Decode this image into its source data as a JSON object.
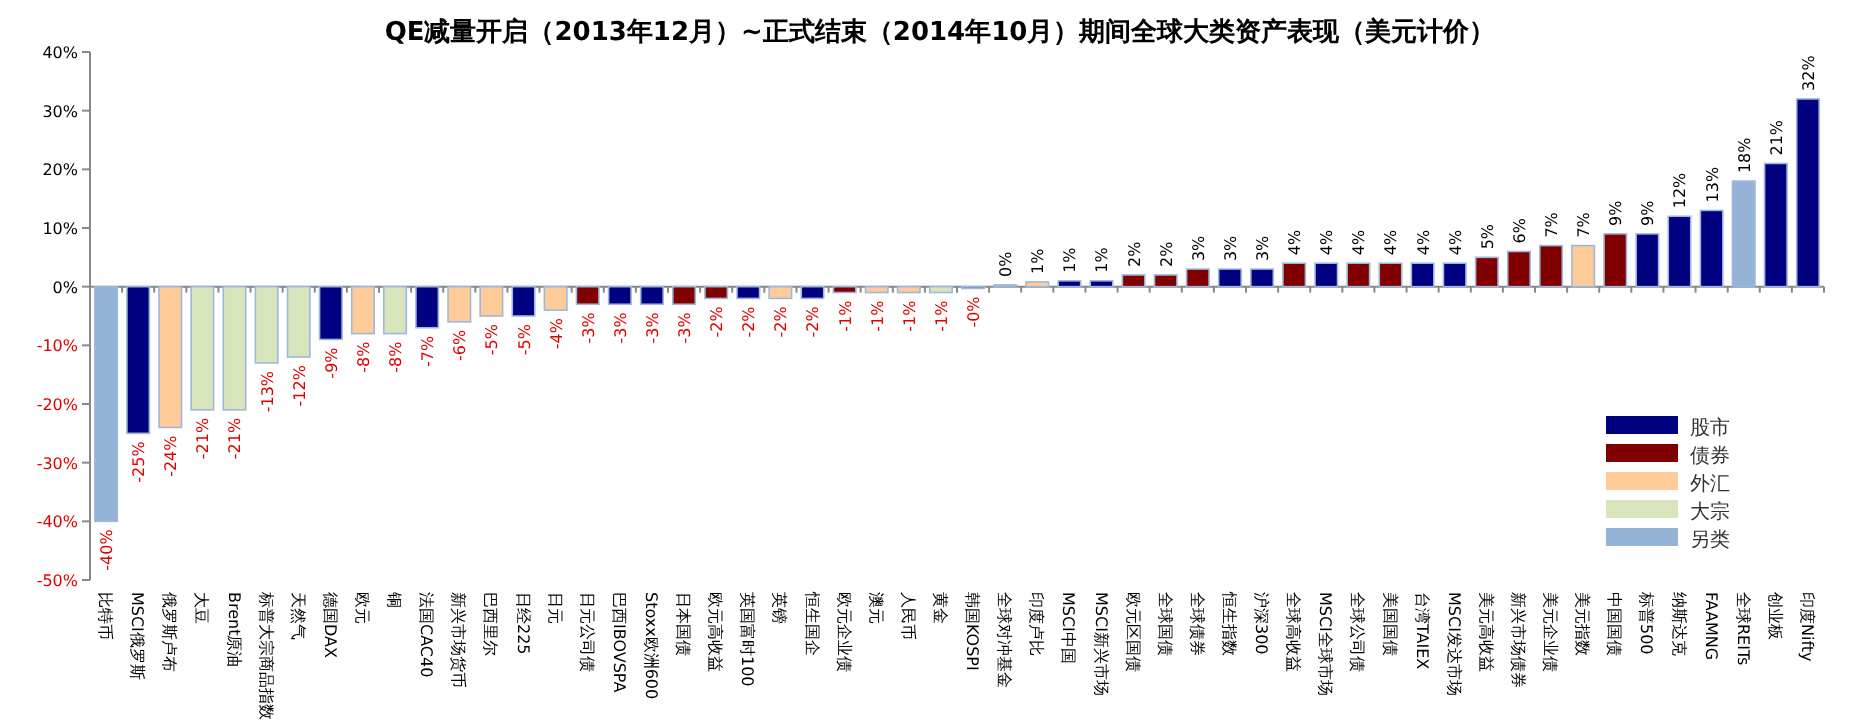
{
  "chart_data": {
    "type": "bar",
    "title": "QE减量开启（2013年12月）~正式结束（2014年10月）期间全球大类资产表现（美元计价）",
    "categories": [
      "比特币",
      "MSCI俄罗斯",
      "俄罗斯卢布",
      "大豆",
      "Brent原油",
      "标普大宗商品指数",
      "天然气",
      "德国DAX",
      "欧元",
      "铜",
      "法国CAC40",
      "新兴市场货币",
      "巴西里尔",
      "日经225",
      "日元",
      "日元公司债",
      "巴西IBOVSPA",
      "Stoxx欧洲600",
      "日本国债",
      "欧元高收益",
      "英国富时100",
      "英镑",
      "恒生国企",
      "欧元企业债",
      "澳元",
      "人民币",
      "黄金",
      "韩国KOSPI",
      "全球对冲基金",
      "印度卢比",
      "MSCI中国",
      "MSCI新兴市场",
      "欧元区国债",
      "全球国债",
      "全球债券",
      "恒生指数",
      "沪深300",
      "全球高收益",
      "MSCI全球市场",
      "全球公司债",
      "美国国债",
      "台湾TAIEX",
      "MSCI发达市场",
      "美元高收益",
      "新兴市场债券",
      "美元企业债",
      "美元指数",
      "中国国债",
      "标普500",
      "纳斯达克",
      "FAAMNG",
      "全球REITs",
      "创业板",
      "印度Nifty"
    ],
    "series": [
      {
        "name": "股市",
        "color": "#000080",
        "values": [
          null,
          -25,
          null,
          null,
          null,
          null,
          null,
          -9,
          null,
          null,
          -7,
          null,
          null,
          -5,
          null,
          null,
          -3,
          -3,
          null,
          null,
          -2,
          null,
          -2,
          null,
          null,
          null,
          null,
          -0.3,
          null,
          null,
          1,
          1,
          null,
          null,
          null,
          3,
          3,
          null,
          4,
          null,
          null,
          4,
          4,
          null,
          null,
          null,
          null,
          null,
          9,
          12,
          13,
          null,
          21,
          32
        ]
      },
      {
        "name": "债券",
        "color": "#800000",
        "values": [
          null,
          null,
          null,
          null,
          null,
          null,
          null,
          null,
          null,
          null,
          null,
          null,
          null,
          null,
          null,
          -3,
          null,
          null,
          -3,
          -2,
          null,
          null,
          null,
          -1,
          null,
          null,
          null,
          null,
          null,
          null,
          null,
          null,
          2,
          2,
          3,
          null,
          null,
          4,
          null,
          4,
          4,
          null,
          null,
          5,
          6,
          7,
          null,
          9,
          null,
          null,
          null,
          null,
          null,
          null
        ]
      },
      {
        "name": "外汇",
        "color": "#ffcc99",
        "values": [
          null,
          null,
          -24,
          null,
          null,
          null,
          null,
          null,
          -8,
          null,
          null,
          -6,
          -5,
          null,
          -4,
          null,
          null,
          null,
          null,
          null,
          null,
          -2,
          null,
          null,
          -1,
          -1,
          null,
          null,
          null,
          0.8,
          null,
          null,
          null,
          null,
          null,
          null,
          null,
          null,
          null,
          null,
          null,
          null,
          null,
          null,
          null,
          null,
          7,
          null,
          null,
          null,
          null,
          null,
          null,
          null
        ]
      },
      {
        "name": "大宗",
        "color": "#d8e4bc",
        "values": [
          null,
          null,
          null,
          -21,
          -21,
          -13,
          -12,
          null,
          null,
          -8,
          null,
          null,
          null,
          null,
          null,
          null,
          null,
          null,
          null,
          null,
          null,
          null,
          null,
          null,
          null,
          null,
          -1,
          null,
          null,
          null,
          null,
          null,
          null,
          null,
          null,
          null,
          null,
          null,
          null,
          null,
          null,
          null,
          null,
          null,
          null,
          null,
          null,
          null,
          null,
          null,
          null,
          null,
          null,
          null
        ]
      },
      {
        "name": "另类",
        "color": "#95b3d7",
        "values": [
          -40,
          null,
          null,
          null,
          null,
          null,
          null,
          null,
          null,
          null,
          null,
          null,
          null,
          null,
          null,
          null,
          null,
          null,
          null,
          null,
          null,
          null,
          null,
          null,
          null,
          null,
          null,
          null,
          0.3,
          null,
          null,
          null,
          null,
          null,
          null,
          null,
          null,
          null,
          null,
          null,
          null,
          null,
          null,
          null,
          null,
          null,
          null,
          null,
          null,
          null,
          null,
          18,
          null,
          null
        ]
      }
    ],
    "value_labels": [
      "-40%",
      "-25%",
      "-24%",
      "-21%",
      "-21%",
      "-13%",
      "-12%",
      "-9%",
      "-8%",
      "-8%",
      "-7%",
      "-6%",
      "-5%",
      "-5%",
      "-4%",
      "-3%",
      "-3%",
      "-3%",
      "-3%",
      "-2%",
      "-2%",
      "-2%",
      "-2%",
      "-1%",
      "-1%",
      "-1%",
      "-1%",
      "-0%",
      "0%",
      "1%",
      "1%",
      "1%",
      "2%",
      "2%",
      "3%",
      "3%",
      "3%",
      "4%",
      "4%",
      "4%",
      "4%",
      "4%",
      "4%",
      "5%",
      "6%",
      "7%",
      "7%",
      "9%",
      "9%",
      "12%",
      "13%",
      "18%",
      "21%",
      "32%"
    ],
    "ylim": [
      -50,
      40
    ],
    "yticks": [
      {
        "value": -50,
        "label": "-50%"
      },
      {
        "value": -40,
        "label": "-40%"
      },
      {
        "value": -30,
        "label": "-30%"
      },
      {
        "value": -20,
        "label": "-20%"
      },
      {
        "value": -10,
        "label": "-10%"
      },
      {
        "value": 0,
        "label": "0%"
      },
      {
        "value": 10,
        "label": "10%"
      },
      {
        "value": 20,
        "label": "20%"
      },
      {
        "value": 30,
        "label": "30%"
      },
      {
        "value": 40,
        "label": "40%"
      }
    ],
    "legend": "bottom right"
  }
}
